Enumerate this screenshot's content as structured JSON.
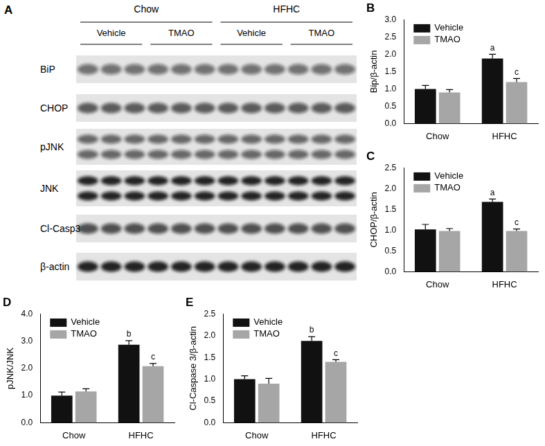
{
  "chart_data": [
    {
      "type": "bar",
      "title": "B",
      "y_label": "Bip/β-actin",
      "categories": [
        "Chow",
        "HFHC"
      ],
      "series": [
        {
          "name": "Vehicle",
          "color": "#111111",
          "values": [
            1.0,
            1.88
          ],
          "errors": [
            0.1,
            0.12
          ],
          "annotations": [
            null,
            "a"
          ]
        },
        {
          "name": "TMAO",
          "color": "#a6a6a6",
          "values": [
            0.9,
            1.2
          ],
          "errors": [
            0.08,
            0.1
          ],
          "annotations": [
            null,
            "c"
          ]
        }
      ],
      "ylim": [
        0,
        3
      ],
      "yticks": [
        {
          "value": 0,
          "label": "0.0"
        },
        0.5,
        {
          "value": 1,
          "label": "1.0"
        },
        1.5,
        {
          "value": 2,
          "label": "2.0"
        },
        2.5,
        {
          "value": 3,
          "label": "3.0"
        }
      ],
      "grid": false,
      "legend": "upper left"
    },
    {
      "type": "bar",
      "title": "C",
      "y_label": "CHOP/β-actin",
      "categories": [
        "Chow",
        "HFHC"
      ],
      "series": [
        {
          "name": "Vehicle",
          "color": "#111111",
          "values": [
            1.02,
            1.68
          ],
          "errors": [
            0.12,
            0.07
          ],
          "annotations": [
            null,
            "a"
          ]
        },
        {
          "name": "TMAO",
          "color": "#a6a6a6",
          "values": [
            0.98,
            0.98
          ],
          "errors": [
            0.06,
            0.05
          ],
          "annotations": [
            null,
            "c"
          ]
        }
      ],
      "ylim": [
        0,
        2.5
      ],
      "yticks": [
        {
          "value": 0,
          "label": "0.0"
        },
        0.5,
        {
          "value": 1,
          "label": "1.0"
        },
        1.5,
        {
          "value": 2,
          "label": "2.0"
        },
        2.5
      ],
      "grid": false,
      "legend": "upper left"
    },
    {
      "type": "bar",
      "title": "D",
      "y_label": "pJNK/JNK",
      "categories": [
        "Chow",
        "HFHC"
      ],
      "series": [
        {
          "name": "Vehicle",
          "color": "#111111",
          "values": [
            1.0,
            2.87
          ],
          "errors": [
            0.13,
            0.15
          ],
          "annotations": [
            null,
            "b"
          ]
        },
        {
          "name": "TMAO",
          "color": "#a6a6a6",
          "values": [
            1.15,
            2.08
          ],
          "errors": [
            0.1,
            0.1
          ],
          "annotations": [
            null,
            "c"
          ]
        }
      ],
      "ylim": [
        0,
        4
      ],
      "yticks": [
        {
          "value": 0,
          "label": "0.0"
        },
        {
          "value": 1,
          "label": "1.0"
        },
        {
          "value": 2,
          "label": "2.0"
        },
        {
          "value": 3,
          "label": "3.0"
        },
        {
          "value": 4,
          "label": "4.0"
        }
      ],
      "grid": false,
      "legend": "upper left"
    },
    {
      "type": "bar",
      "title": "E",
      "y_label": "Cl-Caspase 3/β-actin",
      "categories": [
        "Chow",
        "HFHC"
      ],
      "series": [
        {
          "name": "Vehicle",
          "color": "#111111",
          "values": [
            1.0,
            1.88
          ],
          "errors": [
            0.08,
            0.1
          ],
          "annotations": [
            null,
            "b"
          ]
        },
        {
          "name": "TMAO",
          "color": "#a6a6a6",
          "values": [
            0.9,
            1.4
          ],
          "errors": [
            0.12,
            0.05
          ],
          "annotations": [
            null,
            "c"
          ]
        }
      ],
      "ylim": [
        0,
        2.5
      ],
      "yticks": [
        {
          "value": 0,
          "label": "0.0"
        },
        0.5,
        {
          "value": 1,
          "label": "1.0"
        },
        1.5,
        {
          "value": 2,
          "label": "2.0"
        },
        2.5
      ],
      "grid": false,
      "legend": "upper left"
    }
  ],
  "blot": {
    "title": "A",
    "groups": [
      {
        "label": "Chow",
        "conditions": [
          "Vehicle",
          "TMAO"
        ]
      },
      {
        "label": "HFHC",
        "conditions": [
          "Vehicle",
          "TMAO"
        ]
      }
    ],
    "lanes_per_condition": 3,
    "rows": [
      {
        "label": "BiP",
        "bands": 1
      },
      {
        "label": "CHOP",
        "bands": 1
      },
      {
        "label": "pJNK",
        "bands": 2
      },
      {
        "label": "JNK",
        "bands": 2
      },
      {
        "label": "Cl-Casp3",
        "bands": 1
      },
      {
        "label": "β-actin",
        "bands": 1
      }
    ]
  }
}
